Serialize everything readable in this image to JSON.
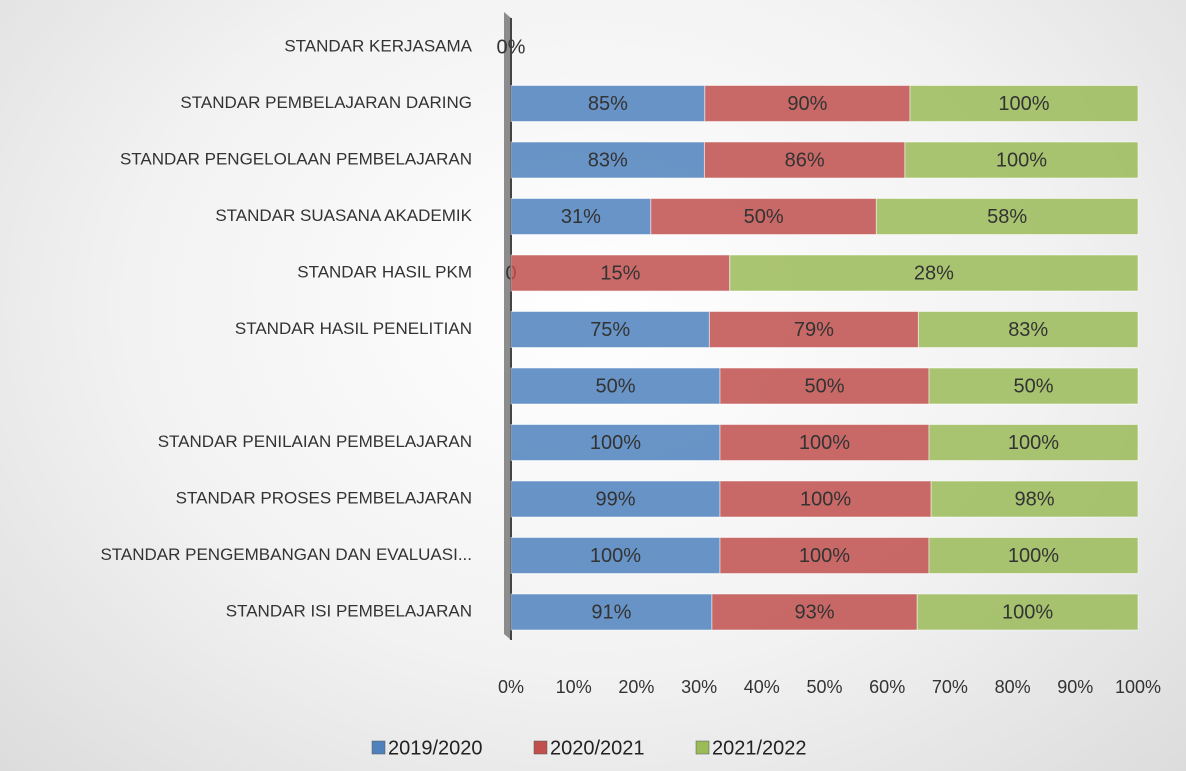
{
  "chart_data": {
    "type": "bar_stacked_100",
    "categories": [
      "STANDAR ISI PEMBELAJARAN",
      "STANDAR PENGEMBANGAN DAN EVALUASI...",
      "STANDAR PROSES PEMBELAJARAN",
      "STANDAR PENILAIAN PEMBELAJARAN",
      null,
      "STANDAR HASIL PENELITIAN",
      "STANDAR HASIL PKM",
      "STANDAR SUASANA AKADEMIK",
      "STANDAR PENGELOLAAN PEMBELAJARAN",
      "STANDAR PEMBELAJARAN DARING",
      "STANDAR KERJASAMA"
    ],
    "series": [
      {
        "name": "2019/2020",
        "color": "#4f81bd",
        "values": [
          91,
          100,
          99,
          100,
          50,
          75,
          0,
          31,
          83,
          85,
          0
        ],
        "value_labels": [
          "91%",
          "100%",
          "99%",
          "100%",
          "50%",
          "75%",
          "0",
          "31%",
          "83%",
          "85%",
          "0%"
        ]
      },
      {
        "name": "2020/2021",
        "color": "#c0504d",
        "values": [
          93,
          100,
          100,
          100,
          50,
          79,
          15,
          50,
          86,
          90,
          0
        ],
        "value_labels": [
          "93%",
          "100%",
          "100%",
          "100%",
          "50%",
          "79%",
          "15%",
          "50%",
          "86%",
          "90%",
          null
        ]
      },
      {
        "name": "2021/2022",
        "color": "#9bbb59",
        "values": [
          100,
          100,
          98,
          100,
          50,
          83,
          28,
          58,
          100,
          100,
          0
        ],
        "value_labels": [
          "100%",
          "100%",
          "98%",
          "100%",
          "50%",
          "83%",
          "28%",
          "58%",
          "100%",
          "100%",
          null
        ]
      }
    ],
    "xlim": [
      0,
      100
    ],
    "xticks": [
      {
        "value": 0,
        "label": "0%"
      },
      {
        "value": 10,
        "label": "10%"
      },
      {
        "value": 20,
        "label": "20%"
      },
      {
        "value": 30,
        "label": "30%"
      },
      {
        "value": 40,
        "label": "40%"
      },
      {
        "value": 50,
        "label": "50%"
      },
      {
        "value": 60,
        "label": "60%"
      },
      {
        "value": 70,
        "label": "70%"
      },
      {
        "value": 80,
        "label": "80%"
      },
      {
        "value": 90,
        "label": "90%"
      },
      {
        "value": 100,
        "label": "100%"
      }
    ],
    "legend": "bottom"
  }
}
